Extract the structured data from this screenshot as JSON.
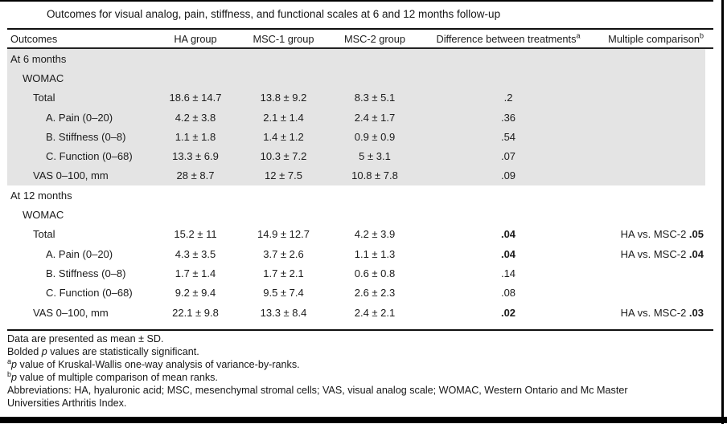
{
  "title": "Outcomes for visual analog, pain, stiffness, and functional scales at 6 and 12 months follow-up",
  "table": {
    "headers": {
      "outcomes": "Outcomes",
      "ha": "HA group",
      "msc1": "MSC-1 group",
      "msc2": "MSC-2 group",
      "diff": "Difference between treatments",
      "diff_sup": "a",
      "mult": "Multiple comparison",
      "mult_sup": "b"
    },
    "rows": [
      {
        "label": "At 6 months"
      },
      {
        "label": "WOMAC"
      },
      {
        "label": "Total",
        "ha": "18.6 ± 14.7",
        "msc1": "13.8 ± 9.2",
        "msc2": "8.3 ± 5.1",
        "diff": ".2"
      },
      {
        "label": "A. Pain (0–20)",
        "ha": "4.2 ± 3.8",
        "msc1": "2.1 ± 1.4",
        "msc2": "2.4 ± 1.7",
        "diff": ".36"
      },
      {
        "label": "B. Stiffness (0–8)",
        "ha": "1.1 ± 1.8",
        "msc1": "1.4 ± 1.2",
        "msc2": "0.9 ± 0.9",
        "diff": ".54"
      },
      {
        "label": "C. Function (0–68)",
        "ha": "13.3 ± 6.9",
        "msc1": "10.3 ± 7.2",
        "msc2": "5 ± 3.1",
        "diff": ".07"
      },
      {
        "label": "VAS 0–100, mm",
        "ha": "28 ± 8.7",
        "msc1": "12 ± 7.5",
        "msc2": "10.8 ± 7.8",
        "diff": ".09"
      },
      {
        "label": "At 12 months"
      },
      {
        "label": "WOMAC"
      },
      {
        "label": "Total",
        "ha": "15.2 ± 11",
        "msc1": "14.9 ± 12.7",
        "msc2": "4.2 ± 3.9",
        "diff": ".04",
        "mult_prefix": "HA vs. MSC-2 ",
        "mult_value": ".05"
      },
      {
        "label": "A. Pain (0–20)",
        "ha": "4.3 ± 3.5",
        "msc1": "3.7 ± 2.6",
        "msc2": "1.1 ± 1.3",
        "diff": ".04",
        "mult_prefix": "HA vs. MSC-2 ",
        "mult_value": ".04"
      },
      {
        "label": "B. Stiffness (0–8)",
        "ha": "1.7 ± 1.4",
        "msc1": "1.7 ± 2.1",
        "msc2": "0.6 ± 0.8",
        "diff": ".14"
      },
      {
        "label": "C. Function (0–68)",
        "ha": "9.2 ± 9.4",
        "msc1": "9.5 ± 7.4",
        "msc2": "2.6 ± 2.3",
        "diff": ".08"
      },
      {
        "label": "VAS 0–100, mm",
        "ha": "22.1 ± 9.8",
        "msc1": "13.3 ± 8.4",
        "msc2": "2.4 ± 2.1",
        "diff": ".02",
        "mult_prefix": "HA vs. MSC-2 ",
        "mult_value": ".03"
      }
    ]
  },
  "footnotes": {
    "line1": "Data are presented as mean ± SD.",
    "line2_pre": "Bolded ",
    "line2_p": "p",
    "line2_post": " values are statistically significant.",
    "line3_sup": "a",
    "line3_p": "p",
    "line3_post": " value of Kruskal-Wallis one-way analysis of variance-by-ranks.",
    "line4_sup": "b",
    "line4_p": "p",
    "line4_post": " value of multiple comparison of mean ranks.",
    "line5": "Abbreviations: HA, hyaluronic acid; MSC, mesenchymal stromal cells; VAS, visual analog scale; WOMAC, Western Ontario and Mc Master",
    "line6": "Universities Arthritis Index."
  },
  "colors": {
    "shaded_band": "#e4e4e4",
    "rule": "#000000",
    "text": "#1b1b1b"
  }
}
